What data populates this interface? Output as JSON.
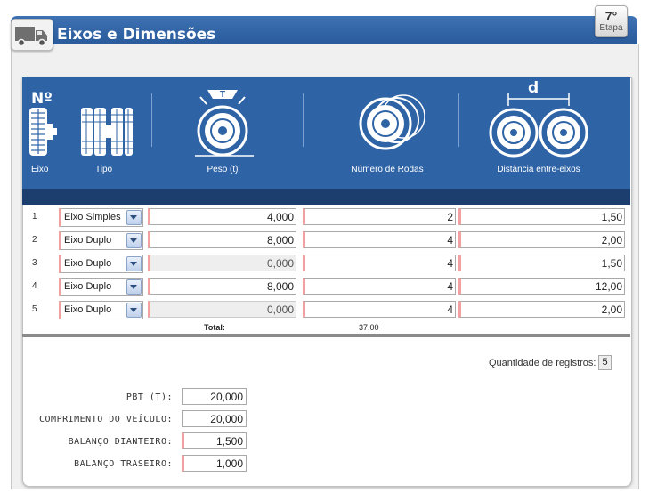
{
  "header": {
    "title": "Eixos e Dimensões",
    "step_number": "7°",
    "step_label": "Etapa"
  },
  "table": {
    "columns": {
      "axle_no": "Nº",
      "axle": "Eixo",
      "type": "Tipo",
      "weight": "Peso (t)",
      "wheels": "Número de Rodas",
      "distance_symbol": "d",
      "distance": "Distância entre-eixos"
    },
    "rows": [
      {
        "num": "1",
        "type": "Eixo Simples",
        "weight": "4,000",
        "weight_disabled": false,
        "wheels": "2",
        "distance": "1,50"
      },
      {
        "num": "2",
        "type": "Eixo Duplo",
        "weight": "8,000",
        "weight_disabled": false,
        "wheels": "4",
        "distance": "2,00"
      },
      {
        "num": "3",
        "type": "Eixo Duplo",
        "weight": "0,000",
        "weight_disabled": true,
        "wheels": "4",
        "distance": "1,50"
      },
      {
        "num": "4",
        "type": "Eixo Duplo",
        "weight": "8,000",
        "weight_disabled": false,
        "wheels": "4",
        "distance": "12,00"
      },
      {
        "num": "5",
        "type": "Eixo Duplo",
        "weight": "0,000",
        "weight_disabled": true,
        "wheels": "4",
        "distance": "2,00"
      }
    ],
    "total_label": "Total:",
    "total_value": "37,00"
  },
  "records": {
    "label": "Quantidade de registros:",
    "count": "5"
  },
  "fields": {
    "pbt": {
      "label": "PBT (T):",
      "value": "20,000"
    },
    "length": {
      "label": "COMPRIMENTO DO VEÍCULO:",
      "value": "20,000"
    },
    "front_overhang": {
      "label": "BALANÇO DIANTEIRO:",
      "value": "1,500"
    },
    "rear_overhang": {
      "label": "BALANÇO TRASEIRO:",
      "value": "1,000"
    }
  },
  "colors": {
    "header_blue": "#2e63a6",
    "dark_bar": "#1b3e6e",
    "required_marker": "#f2a0a0"
  },
  "icons": [
    "truck-icon",
    "axle-number-icon",
    "axle-type-icon",
    "weight-icon",
    "wheels-icon",
    "distance-icon"
  ]
}
